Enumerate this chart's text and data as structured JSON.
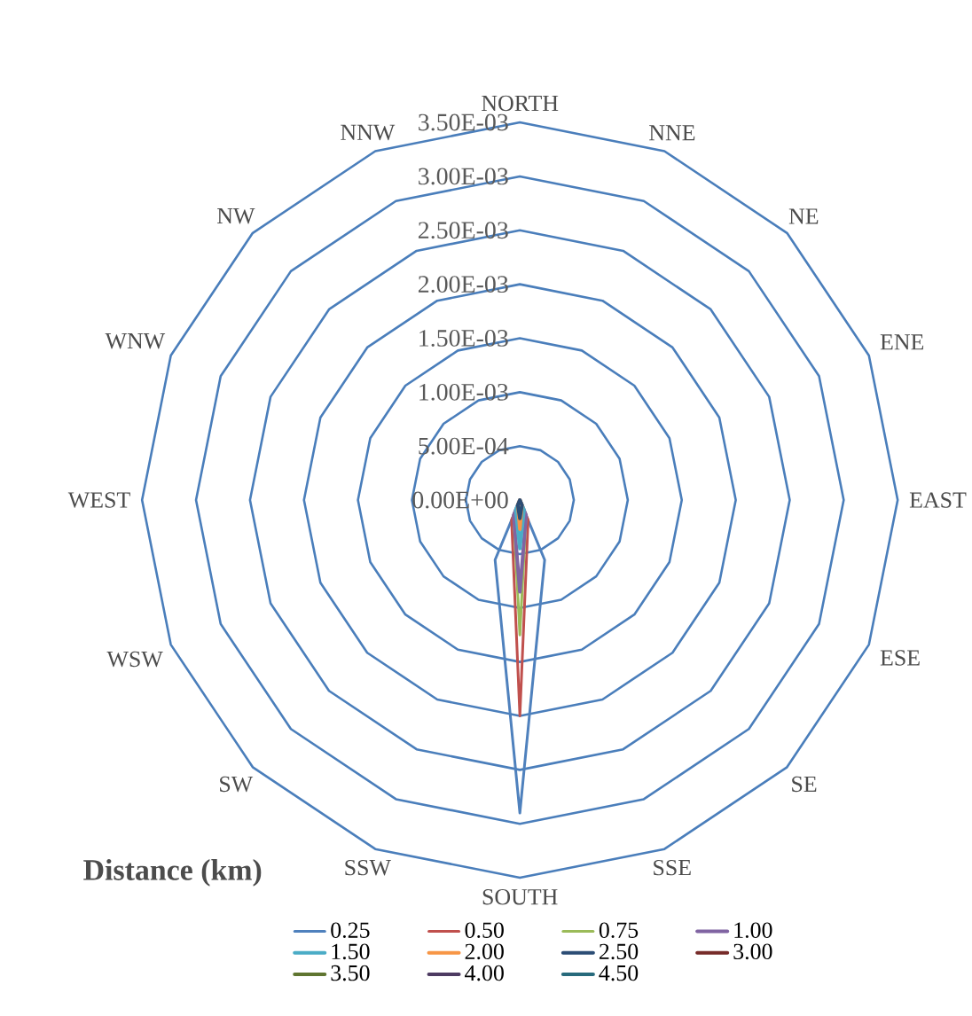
{
  "chart_data": {
    "type": "radar",
    "legend_title": "Distance (km)",
    "categories": [
      "NORTH",
      "NNE",
      "NE",
      "ENE",
      "EAST",
      "ESE",
      "SE",
      "SSE",
      "SOUTH",
      "SSW",
      "SW",
      "WSW",
      "WEST",
      "WNW",
      "NW",
      "NNW"
    ],
    "ylim": [
      0,
      0.0035
    ],
    "yticks": [
      {
        "value": 0,
        "label": "0.00E+00"
      },
      {
        "value": 0.0005,
        "label": "5.00E-04"
      },
      {
        "value": 0.001,
        "label": "1.00E-03"
      },
      {
        "value": 0.0015,
        "label": "1.50E-03"
      },
      {
        "value": 0.002,
        "label": "2.00E-03"
      },
      {
        "value": 0.0025,
        "label": "2.50E-03"
      },
      {
        "value": 0.003,
        "label": "3.00E-03"
      },
      {
        "value": 0.0035,
        "label": "3.50E-03"
      }
    ],
    "grid": true,
    "legend": "bottom",
    "marker": "none",
    "line_style": "solid",
    "series": [
      {
        "name": "0.25",
        "color": "#4f81bd",
        "values": [
          0,
          0,
          0,
          0,
          0,
          0,
          0,
          0.0006,
          0.0029,
          0.0006,
          0,
          0,
          0,
          0,
          0,
          0
        ]
      },
      {
        "name": "0.50",
        "color": "#c0504d",
        "values": [
          0,
          0,
          0,
          0,
          0,
          0,
          0,
          0.0002,
          0.002,
          0.0002,
          0,
          0,
          0,
          0,
          0,
          0
        ]
      },
      {
        "name": "0.75",
        "color": "#9bbb59",
        "values": [
          0,
          0,
          0,
          0,
          0,
          0,
          0,
          0.00015,
          0.00125,
          0.00015,
          0,
          0,
          0,
          0,
          0,
          0
        ]
      },
      {
        "name": "1.00",
        "color": "#8064a2",
        "values": [
          0,
          0,
          0,
          0,
          0,
          0,
          0,
          0.00015,
          0.00085,
          0.00015,
          0,
          0,
          0,
          0,
          0,
          0
        ]
      },
      {
        "name": "1.50",
        "color": "#4bacc6",
        "values": [
          0,
          0,
          0,
          0,
          0,
          0,
          0,
          0.0001,
          0.00045,
          0.0001,
          0,
          0,
          0,
          0,
          0,
          0
        ]
      },
      {
        "name": "2.00",
        "color": "#f79646",
        "values": [
          0,
          0,
          0,
          0,
          0,
          0,
          0,
          5e-05,
          0.00027,
          5e-05,
          0,
          0,
          0,
          0,
          0,
          0
        ]
      },
      {
        "name": "2.50",
        "color": "#2c4d75",
        "values": [
          0,
          0,
          0,
          0,
          0,
          0,
          0,
          5e-05,
          0.00017,
          5e-05,
          0,
          0,
          0,
          0,
          0,
          0
        ]
      },
      {
        "name": "3.00",
        "color": "#772c2a",
        "values": [
          null,
          null,
          null,
          null,
          null,
          null,
          null,
          null,
          null,
          null,
          null,
          null,
          null,
          null,
          null,
          null
        ]
      },
      {
        "name": "3.50",
        "color": "#5f7530",
        "values": [
          null,
          null,
          null,
          null,
          null,
          null,
          null,
          null,
          null,
          null,
          null,
          null,
          null,
          null,
          null,
          null
        ]
      },
      {
        "name": "4.00",
        "color": "#4d3b62",
        "values": [
          null,
          null,
          null,
          null,
          null,
          null,
          null,
          null,
          null,
          null,
          null,
          null,
          null,
          null,
          null,
          null
        ]
      },
      {
        "name": "4.50",
        "color": "#276a7c",
        "values": [
          null,
          null,
          null,
          null,
          null,
          null,
          null,
          null,
          null,
          null,
          null,
          null,
          null,
          null,
          null,
          null
        ]
      }
    ]
  }
}
